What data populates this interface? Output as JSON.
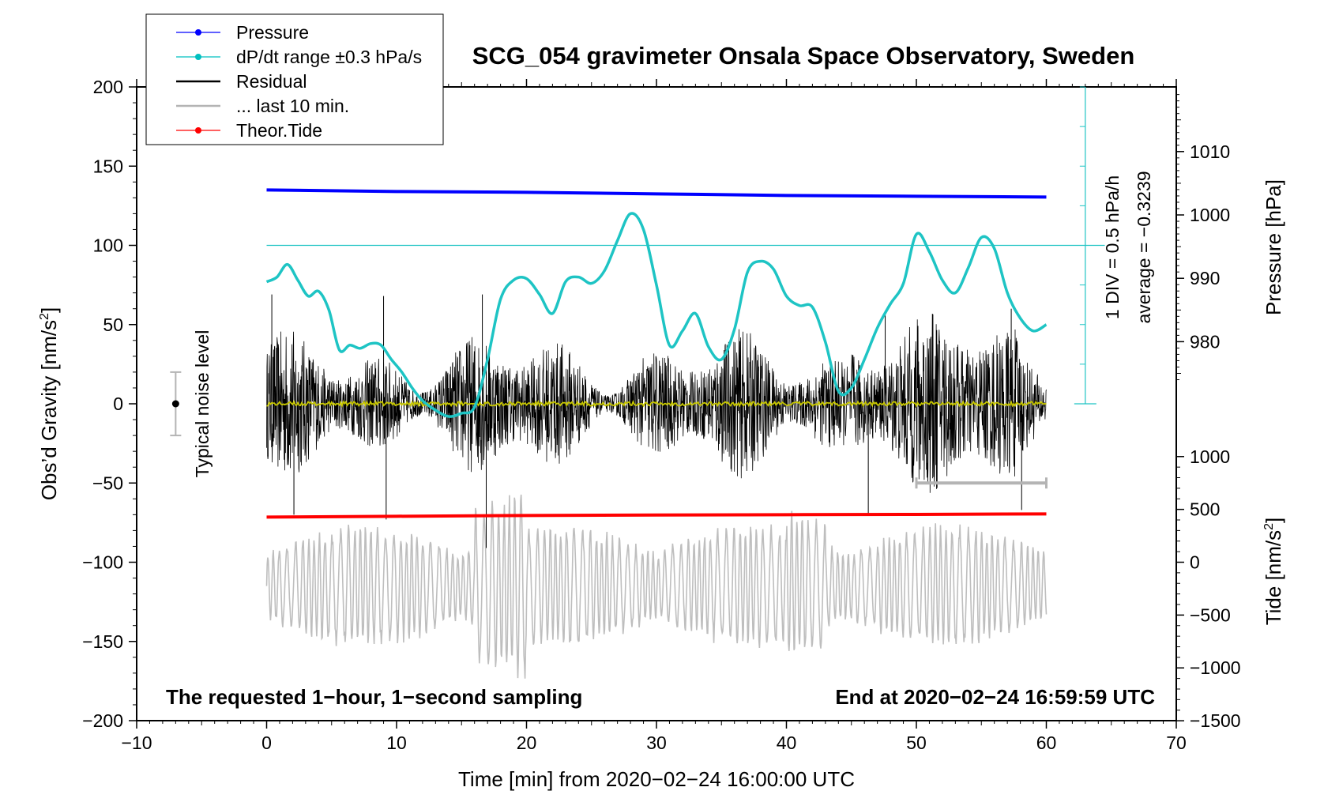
{
  "chart_data": {
    "type": "line",
    "title": "SCG_054 gravimeter Onsala Space Observatory, Sweden",
    "xlabel": "Time [min] from 2020−02−24 16:00:00 UTC",
    "ylabel": "Obs’d Gravity [nm/s",
    "ylabel_sup": "2",
    "ylabel_end": "]",
    "xlim": [
      -10,
      70
    ],
    "ylim": [
      -200,
      200
    ],
    "x_ticks": [
      -10,
      0,
      10,
      20,
      30,
      40,
      50,
      60,
      70
    ],
    "x_tick_labels": [
      "−10",
      "0",
      "10",
      "20",
      "30",
      "40",
      "50",
      "60",
      "70"
    ],
    "y_ticks": [
      -200,
      -150,
      -100,
      -50,
      0,
      50,
      100,
      150,
      200
    ],
    "y_tick_labels": [
      "−200",
      "−150",
      "−100",
      "−50",
      "0",
      "50",
      "100",
      "150",
      "200"
    ],
    "pressure_axis": {
      "label": "Pressure [hPa]",
      "ticks": [
        980,
        990,
        1000,
        1010
      ],
      "tick_labels": [
        "980",
        "990",
        "1000",
        "1010"
      ],
      "grav_at_980": 39.2,
      "grav_per_hpa": 4.0
    },
    "tide_axis": {
      "label": "Tide [nm/s",
      "label_sup": "2",
      "label_end": "]",
      "ticks": [
        -1500,
        -1000,
        -500,
        0,
        500,
        1000
      ],
      "tick_labels": [
        "−1500",
        "−1000",
        "−500",
        "0",
        "500",
        "1000"
      ],
      "grav_at_zero": -100,
      "grav_per_unit": 0.0667
    },
    "dpdt_scale": {
      "label": "1 DIV = 0.5 hPa/h",
      "average": "average = −0.3239",
      "div_labels_count": 8
    },
    "noise_label": "Typical noise level",
    "noise_range": [
      -20,
      20
    ],
    "annotation_left": "The requested 1−hour, 1−second sampling",
    "annotation_right": "End at 2020−02−24 16:59:59 UTC",
    "legend": [
      {
        "label": "Pressure",
        "color": "#0000ff",
        "marker": true
      },
      {
        "label": "dP/dt range ±0.3 hPa/s",
        "color": "#00c0c0",
        "marker": true
      },
      {
        "label": "Residual",
        "color": "#000000",
        "marker": false
      },
      {
        "label": "... last 10 min.",
        "color": "#b4b4b4",
        "marker": false
      },
      {
        "label": "Theor.Tide",
        "color": "#ff0000",
        "marker": true
      }
    ],
    "series": [
      {
        "name": "Pressure",
        "color": "#0000ff",
        "x": [
          0,
          10,
          20,
          30,
          40,
          50,
          60
        ],
        "y": [
          135,
          134,
          133.5,
          132.5,
          131.5,
          131,
          130.5
        ]
      },
      {
        "name": "dP/dt range ±0.3 hPa/s",
        "color": "#1ec4c4",
        "reference_line_y": 100,
        "x": [
          0,
          0.8,
          1.6,
          2.4,
          3.2,
          4.0,
          4.8,
          5.6,
          6.4,
          7.2,
          8.0,
          8.8,
          9.6,
          10.4,
          11.2,
          12,
          13,
          14,
          15,
          16,
          17,
          18,
          19,
          20,
          21,
          22,
          23,
          24,
          25,
          26,
          27,
          28,
          29,
          30,
          31,
          32,
          33,
          34,
          35,
          36,
          37,
          38,
          39,
          40,
          41,
          42,
          43,
          44,
          45,
          46,
          47,
          48,
          49,
          50,
          51,
          52,
          53,
          54,
          55,
          56,
          57,
          58,
          59,
          60
        ],
        "y": [
          77,
          80,
          88,
          78,
          68,
          71,
          59,
          34,
          37,
          35,
          38,
          37,
          28,
          20,
          10,
          2,
          -4,
          -8,
          -6,
          -2,
          28,
          66,
          78,
          79,
          69,
          57,
          77,
          80,
          76,
          84,
          103,
          120,
          110,
          75,
          37,
          46,
          57,
          36,
          28,
          47,
          83,
          90,
          85,
          68,
          62,
          61,
          39,
          8,
          10,
          28,
          48,
          63,
          76,
          107,
          96,
          78,
          70,
          86,
          105,
          98,
          70,
          54,
          46,
          50
        ]
      },
      {
        "name": "Residual",
        "color": "#000000",
        "samples": 3600,
        "amplitude": 48,
        "peaks": [
          {
            "x": 0.4,
            "y": 69
          },
          {
            "x": 2.1,
            "y": -70
          },
          {
            "x": 9.0,
            "y": 68
          },
          {
            "x": 9.2,
            "y": -73
          },
          {
            "x": 16.6,
            "y": 69
          },
          {
            "x": 16.9,
            "y": -91
          },
          {
            "x": 46.3,
            "y": -70
          },
          {
            "x": 47.6,
            "y": 58
          },
          {
            "x": 57.3,
            "y": 60
          },
          {
            "x": 58.1,
            "y": -67
          }
        ]
      },
      {
        "name": "Residual mean",
        "color": "#c8c800",
        "x": [
          0,
          60
        ],
        "y": [
          0,
          0
        ]
      },
      {
        "name": "... last 10 min.",
        "color": "#b4b4b4",
        "x_start": 50,
        "x_end": 60,
        "y": -50
      },
      {
        "name": "Theor.Tide",
        "color": "#ff0000",
        "x": [
          0,
          10,
          20,
          30,
          40,
          50,
          60
        ],
        "y": [
          -71.5,
          -71,
          -70.5,
          -70.2,
          -70,
          -69.8,
          -69.5
        ]
      },
      {
        "name": "Tide residual (grey)",
        "color": "#bebebe",
        "x_start": 0,
        "x_end": 60,
        "center": -115,
        "amplitude": 40
      }
    ]
  }
}
